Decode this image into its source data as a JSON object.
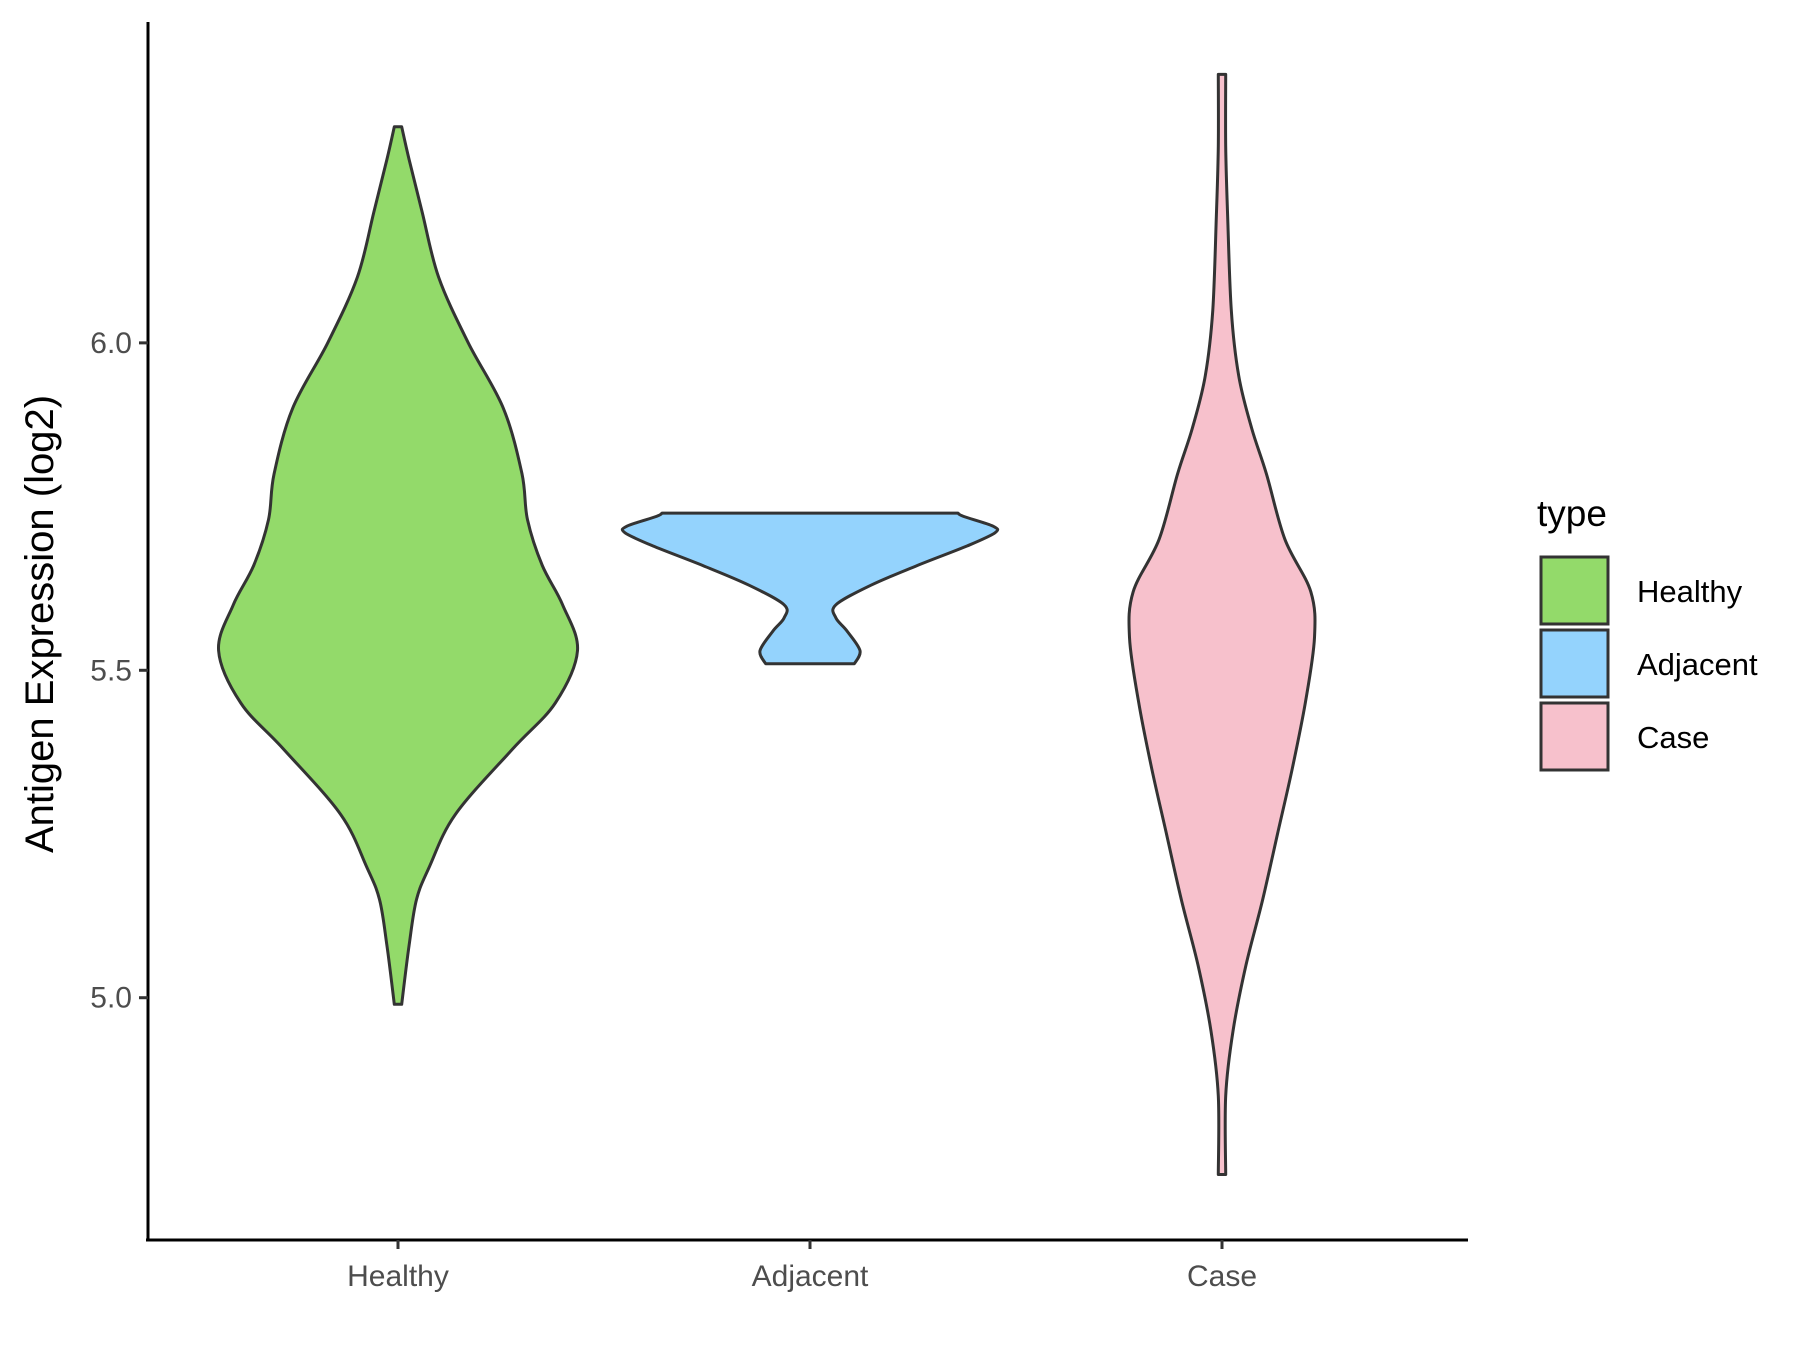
{
  "chart_data": {
    "type": "violin",
    "categories": [
      "Healthy",
      "Adjacent",
      "Case"
    ],
    "ylabel": "Antigen Expression (log2)",
    "xlabel": "",
    "ylim": [
      4.63,
      6.49
    ],
    "yticks": [
      {
        "value": 5.0,
        "label": "5.0"
      },
      {
        "value": 5.5,
        "label": "5.5"
      },
      {
        "value": 6.0,
        "label": "6.0"
      }
    ],
    "colors": {
      "Healthy": "#93DA6A",
      "Adjacent": "#94D3FD",
      "Case": "#F7C1CC",
      "outline": "#333333"
    },
    "legend": {
      "title": "type",
      "position": "right",
      "entries": [
        "Healthy",
        "Adjacent",
        "Case"
      ]
    },
    "series": [
      {
        "name": "Healthy",
        "min": 4.99,
        "max": 6.33,
        "density": [
          [
            4.99,
            0.02
          ],
          [
            5.08,
            0.06
          ],
          [
            5.15,
            0.1
          ],
          [
            5.2,
            0.17
          ],
          [
            5.28,
            0.31
          ],
          [
            5.38,
            0.62
          ],
          [
            5.45,
            0.85
          ],
          [
            5.53,
            0.97
          ],
          [
            5.6,
            0.89
          ],
          [
            5.66,
            0.78
          ],
          [
            5.73,
            0.7
          ],
          [
            5.8,
            0.67
          ],
          [
            5.9,
            0.57
          ],
          [
            6.0,
            0.38
          ],
          [
            6.1,
            0.22
          ],
          [
            6.2,
            0.13
          ],
          [
            6.28,
            0.06
          ],
          [
            6.33,
            0.02
          ]
        ]
      },
      {
        "name": "Adjacent",
        "min": 5.51,
        "max": 5.74,
        "density": [
          [
            5.51,
            0.24
          ],
          [
            5.53,
            0.27
          ],
          [
            5.56,
            0.2
          ],
          [
            5.58,
            0.14
          ],
          [
            5.6,
            0.14
          ],
          [
            5.63,
            0.33
          ],
          [
            5.66,
            0.58
          ],
          [
            5.69,
            0.85
          ],
          [
            5.71,
            1.0
          ],
          [
            5.72,
            0.99
          ],
          [
            5.735,
            0.83
          ],
          [
            5.74,
            0.8
          ]
        ]
      },
      {
        "name": "Case",
        "min": 4.73,
        "max": 6.41,
        "density": [
          [
            4.73,
            0.02
          ],
          [
            4.85,
            0.02
          ],
          [
            4.95,
            0.06
          ],
          [
            5.05,
            0.13
          ],
          [
            5.15,
            0.22
          ],
          [
            5.25,
            0.3
          ],
          [
            5.35,
            0.38
          ],
          [
            5.45,
            0.45
          ],
          [
            5.55,
            0.5
          ],
          [
            5.62,
            0.48
          ],
          [
            5.7,
            0.34
          ],
          [
            5.8,
            0.24
          ],
          [
            5.87,
            0.16
          ],
          [
            5.95,
            0.09
          ],
          [
            6.05,
            0.05
          ],
          [
            6.2,
            0.03
          ],
          [
            6.3,
            0.02
          ],
          [
            6.41,
            0.02
          ]
        ]
      }
    ]
  }
}
